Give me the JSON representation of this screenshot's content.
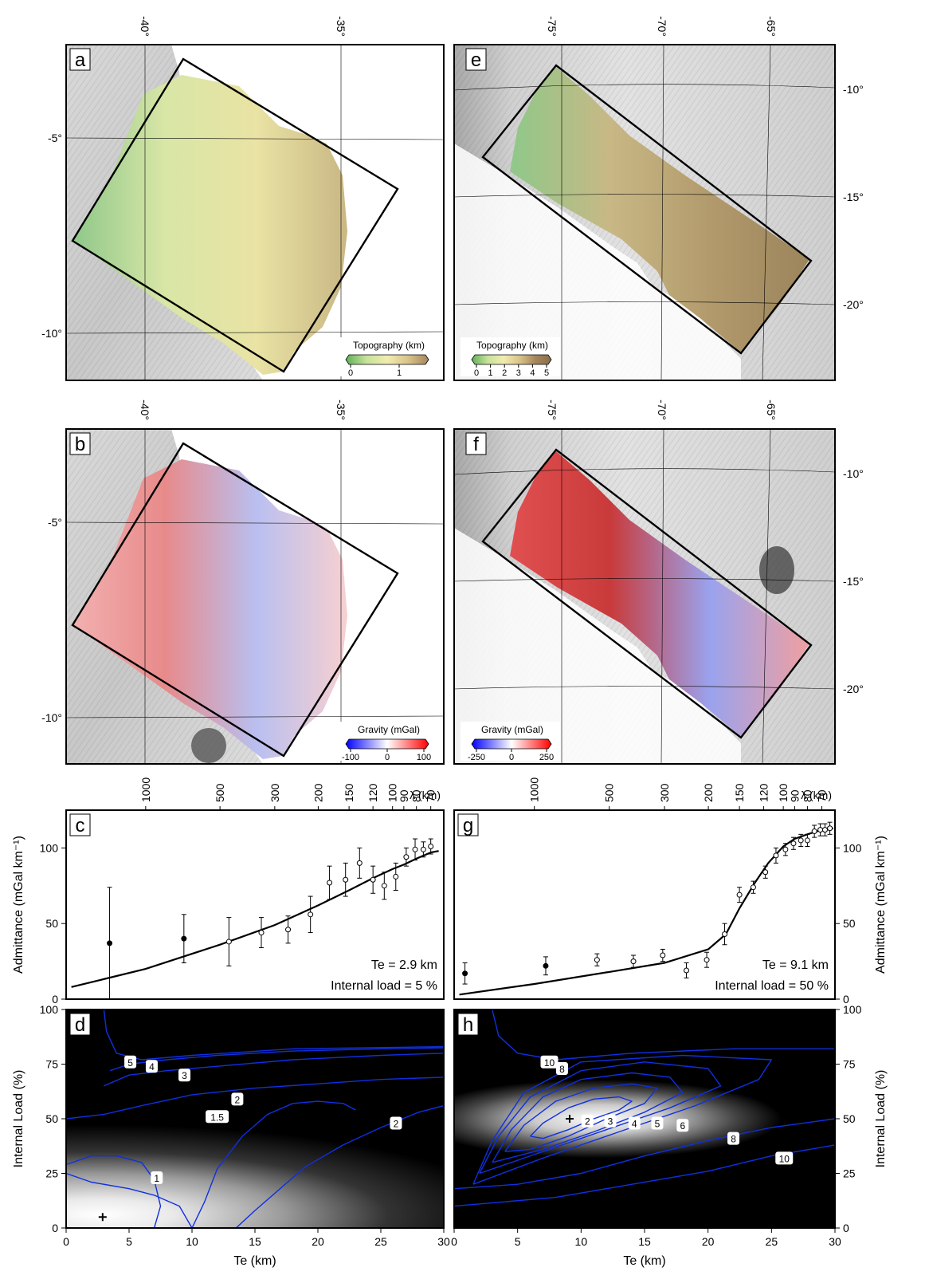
{
  "map_panels": [
    {
      "id": "a",
      "label": "a",
      "lon_ticks": [
        "-40°",
        "-35°"
      ],
      "lat_ticks": [
        "-5°",
        "-10°"
      ],
      "colorbar": {
        "title": "Topography (km)",
        "ticks": [
          "0",
          "1"
        ],
        "stops": [
          "#5fb05a",
          "#c7e29a",
          "#f2ecb0",
          "#d9c48a",
          "#a6865c"
        ]
      },
      "fill_colors": [
        "#8fc88a",
        "#d8e6a6",
        "#e9e3a4",
        "#c9b784"
      ]
    },
    {
      "id": "e",
      "label": "e",
      "lon_ticks": [
        "-75°",
        "-70°",
        "-65°"
      ],
      "lat_ticks": [
        "-10°",
        "-15°",
        "-20°"
      ],
      "colorbar": {
        "title": "Topography (km)",
        "ticks": [
          "0",
          "1",
          "2",
          "3",
          "4",
          "5"
        ],
        "stops": [
          "#5fb05a",
          "#c7e29a",
          "#f2ecb0",
          "#d9c48a",
          "#a6865c",
          "#8a6d4a"
        ]
      },
      "fill_colors": [
        "#8fc88a",
        "#c8b885",
        "#b29a6c",
        "#9c845c"
      ]
    },
    {
      "id": "b",
      "label": "b",
      "lon_ticks": [
        "-40°",
        "-35°"
      ],
      "lat_ticks": [
        "-5°",
        "-10°"
      ],
      "colorbar": {
        "title": "Gravity (mGal)",
        "ticks": [
          "-100",
          "0",
          "100"
        ],
        "stops": [
          "#0000ff",
          "#ffffff",
          "#ff0000"
        ]
      },
      "fill_colors": [
        "#f2b0b0",
        "#e88a8a",
        "#b9bff0",
        "#f7d0d0"
      ]
    },
    {
      "id": "f",
      "label": "f",
      "lon_ticks": [
        "-75°",
        "-70°",
        "-65°"
      ],
      "lat_ticks": [
        "-10°",
        "-15°",
        "-20°"
      ],
      "colorbar": {
        "title": "Gravity (mGal)",
        "ticks": [
          "-250",
          "0",
          "250"
        ],
        "stops": [
          "#0000ff",
          "#ffffff",
          "#ff0000"
        ]
      },
      "fill_colors": [
        "#e05050",
        "#c93a3a",
        "#9aa2ee",
        "#f0a0a0"
      ]
    }
  ],
  "chart_data": [
    {
      "id": "c",
      "type": "scatter",
      "label": "c",
      "top_axis_label": "λ (km)",
      "wavelength_ticks": [
        1000,
        500,
        300,
        200,
        150,
        120,
        100,
        90,
        80,
        70
      ],
      "ylabel": "Admittance (mGal km⁻¹)",
      "ylim": [
        0,
        125
      ],
      "y_ticks": [
        0,
        50,
        100
      ],
      "annotations": [
        "Te = 2.9 km",
        "Internal load = 5 %"
      ],
      "points": [
        {
          "wavelength": 1400,
          "admittance": 37,
          "error": 37,
          "filled": true
        },
        {
          "wavelength": 700,
          "admittance": 40,
          "error": 16,
          "filled": true
        },
        {
          "wavelength": 460,
          "admittance": 38,
          "error": 16,
          "filled": false
        },
        {
          "wavelength": 340,
          "admittance": 44,
          "error": 10,
          "filled": false
        },
        {
          "wavelength": 265,
          "admittance": 46,
          "error": 9,
          "filled": false
        },
        {
          "wavelength": 215,
          "admittance": 56,
          "error": 12,
          "filled": false
        },
        {
          "wavelength": 180,
          "admittance": 77,
          "error": 11,
          "filled": false
        },
        {
          "wavelength": 155,
          "admittance": 79,
          "error": 11,
          "filled": false
        },
        {
          "wavelength": 136,
          "admittance": 90,
          "error": 10,
          "filled": false
        },
        {
          "wavelength": 120,
          "admittance": 79,
          "error": 9,
          "filled": false
        },
        {
          "wavelength": 108,
          "admittance": 75,
          "error": 9,
          "filled": false
        },
        {
          "wavelength": 97,
          "admittance": 81,
          "error": 9,
          "filled": false
        },
        {
          "wavelength": 88,
          "admittance": 94,
          "error": 6,
          "filled": false
        },
        {
          "wavelength": 81,
          "admittance": 99,
          "error": 7,
          "filled": false
        },
        {
          "wavelength": 75,
          "admittance": 99,
          "error": 5,
          "filled": false
        },
        {
          "wavelength": 70,
          "admittance": 101,
          "error": 5,
          "filled": false
        }
      ],
      "curve": [
        [
          2000,
          8
        ],
        [
          1000,
          20
        ],
        [
          500,
          36
        ],
        [
          300,
          49
        ],
        [
          200,
          62
        ],
        [
          150,
          72
        ],
        [
          120,
          80
        ],
        [
          100,
          86
        ],
        [
          90,
          89
        ],
        [
          80,
          93
        ],
        [
          70,
          97
        ],
        [
          65,
          98
        ]
      ]
    },
    {
      "id": "g",
      "type": "scatter",
      "label": "g",
      "top_axis_label": "λ (km)",
      "wavelength_ticks": [
        1000,
        500,
        300,
        200,
        150,
        120,
        100,
        90,
        80,
        70
      ],
      "ylabel": "Admittance (mGal km⁻¹)",
      "ylim": [
        0,
        125
      ],
      "y_ticks": [
        0,
        50,
        100
      ],
      "annotations": [
        "Te = 9.1 km",
        "Internal load = 50 %"
      ],
      "points": [
        {
          "wavelength": 1900,
          "admittance": 17,
          "error": 7,
          "filled": true
        },
        {
          "wavelength": 900,
          "admittance": 22,
          "error": 6,
          "filled": true
        },
        {
          "wavelength": 560,
          "admittance": 26,
          "error": 4,
          "filled": false
        },
        {
          "wavelength": 400,
          "admittance": 25,
          "error": 4,
          "filled": false
        },
        {
          "wavelength": 305,
          "admittance": 29,
          "error": 4,
          "filled": false
        },
        {
          "wavelength": 245,
          "admittance": 19,
          "error": 5,
          "filled": false
        },
        {
          "wavelength": 203,
          "admittance": 26,
          "error": 5,
          "filled": false
        },
        {
          "wavelength": 172,
          "admittance": 43,
          "error": 7,
          "filled": false
        },
        {
          "wavelength": 150,
          "admittance": 69,
          "error": 5,
          "filled": false
        },
        {
          "wavelength": 132,
          "admittance": 74,
          "error": 4,
          "filled": false
        },
        {
          "wavelength": 118,
          "admittance": 84,
          "error": 4,
          "filled": false
        },
        {
          "wavelength": 107,
          "admittance": 95,
          "error": 5,
          "filled": false
        },
        {
          "wavelength": 98,
          "admittance": 99,
          "error": 4,
          "filled": false
        },
        {
          "wavelength": 91,
          "admittance": 103,
          "error": 4,
          "filled": false
        },
        {
          "wavelength": 85,
          "admittance": 105,
          "error": 4,
          "filled": false
        },
        {
          "wavelength": 80,
          "admittance": 105,
          "error": 4,
          "filled": false
        },
        {
          "wavelength": 75,
          "admittance": 111,
          "error": 4,
          "filled": false
        },
        {
          "wavelength": 71,
          "admittance": 112,
          "error": 4,
          "filled": false
        },
        {
          "wavelength": 68,
          "admittance": 112,
          "error": 4,
          "filled": false
        },
        {
          "wavelength": 65,
          "admittance": 113,
          "error": 4,
          "filled": false
        }
      ],
      "curve": [
        [
          2000,
          3
        ],
        [
          1000,
          10
        ],
        [
          500,
          18
        ],
        [
          300,
          24
        ],
        [
          200,
          33
        ],
        [
          170,
          43
        ],
        [
          150,
          60
        ],
        [
          130,
          77
        ],
        [
          115,
          90
        ],
        [
          100,
          101
        ],
        [
          90,
          106
        ],
        [
          80,
          109
        ],
        [
          70,
          112
        ],
        [
          63,
          113
        ]
      ]
    },
    {
      "id": "d",
      "type": "heatmap",
      "label": "d",
      "xlabel": "Te (km)",
      "ylabel": "Internal Load (%)",
      "xlim": [
        0,
        30
      ],
      "ylim": [
        0,
        100
      ],
      "x_ticks": [
        0,
        5,
        10,
        15,
        20,
        25,
        30
      ],
      "y_ticks": [
        0,
        25,
        50,
        75,
        100
      ],
      "best_fit": {
        "te": 2.9,
        "load": 5
      },
      "contour_labels": [
        {
          "text": "5",
          "te": 5.1,
          "load": 76
        },
        {
          "text": "4",
          "te": 6.8,
          "load": 74
        },
        {
          "text": "3",
          "te": 9.4,
          "load": 70
        },
        {
          "text": "2",
          "te": 13.6,
          "load": 59
        },
        {
          "text": "1.5",
          "te": 12.0,
          "load": 51
        },
        {
          "text": "1",
          "te": 7.2,
          "load": 23
        },
        {
          "text": "2",
          "te": 26.2,
          "load": 48
        }
      ],
      "contours": [
        [
          [
            0,
            25
          ],
          [
            2,
            21
          ],
          [
            5,
            18
          ],
          [
            7,
            15
          ],
          [
            9,
            10
          ],
          [
            10,
            0
          ]
        ],
        [
          [
            7,
            0
          ],
          [
            7.5,
            10
          ],
          [
            7,
            22
          ],
          [
            6,
            30
          ],
          [
            4,
            33
          ],
          [
            2,
            33
          ],
          [
            1,
            31
          ],
          [
            0,
            29
          ]
        ],
        [
          [
            10,
            0
          ],
          [
            11,
            12
          ],
          [
            12,
            27
          ],
          [
            14,
            42
          ],
          [
            16,
            52
          ],
          [
            18,
            57
          ],
          [
            20,
            58
          ],
          [
            22,
            57
          ],
          [
            23,
            54
          ]
        ],
        [
          [
            13.5,
            0
          ],
          [
            15,
            8
          ],
          [
            17,
            18
          ],
          [
            19,
            28
          ],
          [
            22,
            38
          ],
          [
            25,
            46
          ],
          [
            28,
            53
          ],
          [
            30,
            56
          ]
        ],
        [
          [
            0,
            50
          ],
          [
            3,
            52
          ],
          [
            6,
            56
          ],
          [
            10,
            61
          ],
          [
            15,
            64
          ],
          [
            20,
            66
          ],
          [
            25,
            68
          ],
          [
            30,
            69
          ]
        ],
        [
          [
            3,
            65
          ],
          [
            5,
            70
          ],
          [
            8,
            72
          ],
          [
            12,
            74
          ],
          [
            18,
            77
          ],
          [
            25,
            79
          ],
          [
            30,
            80
          ]
        ],
        [
          [
            3.5,
            72
          ],
          [
            5,
            75
          ],
          [
            8,
            77
          ],
          [
            12,
            79
          ],
          [
            18,
            81
          ],
          [
            25,
            82
          ],
          [
            30,
            82.5
          ]
        ],
        [
          [
            3,
            100
          ],
          [
            3.2,
            90
          ],
          [
            4,
            80
          ],
          [
            6,
            77
          ],
          [
            10,
            79
          ],
          [
            18,
            82
          ],
          [
            30,
            83
          ]
        ]
      ]
    },
    {
      "id": "h",
      "type": "heatmap",
      "label": "h",
      "xlabel": "Te (km)",
      "ylabel": "Internal Load (%)",
      "xlim": [
        0,
        30
      ],
      "ylim": [
        0,
        100
      ],
      "x_ticks": [
        0,
        5,
        10,
        15,
        20,
        25,
        30
      ],
      "y_ticks": [
        0,
        25,
        50,
        75,
        100
      ],
      "best_fit": {
        "te": 9.1,
        "load": 50
      },
      "contour_labels": [
        {
          "text": "10",
          "te": 7.5,
          "load": 76
        },
        {
          "text": "8",
          "te": 8.5,
          "load": 73
        },
        {
          "text": "2",
          "te": 10.5,
          "load": 49
        },
        {
          "text": "3",
          "te": 12.3,
          "load": 49
        },
        {
          "text": "4",
          "te": 14.2,
          "load": 48
        },
        {
          "text": "5",
          "te": 16.0,
          "load": 48
        },
        {
          "text": "6",
          "te": 18.0,
          "load": 47
        },
        {
          "text": "8",
          "te": 22.0,
          "load": 41
        },
        {
          "text": "10",
          "te": 26.0,
          "load": 32
        }
      ],
      "contours": [
        [
          [
            6,
            42
          ],
          [
            7,
            48
          ],
          [
            9,
            55
          ],
          [
            11,
            59
          ],
          [
            13,
            60
          ],
          [
            14,
            58
          ],
          [
            13,
            54
          ],
          [
            11,
            50
          ],
          [
            9,
            45
          ],
          [
            7,
            41
          ],
          [
            6,
            42
          ]
        ],
        [
          [
            4,
            35
          ],
          [
            5.5,
            47
          ],
          [
            8,
            58
          ],
          [
            11,
            64
          ],
          [
            14,
            66
          ],
          [
            16,
            64
          ],
          [
            15,
            57
          ],
          [
            12,
            50
          ],
          [
            9,
            42
          ],
          [
            6,
            36
          ],
          [
            4,
            35
          ]
        ],
        [
          [
            3,
            30
          ],
          [
            4.5,
            45
          ],
          [
            7,
            60
          ],
          [
            10,
            68
          ],
          [
            14,
            71
          ],
          [
            17,
            69
          ],
          [
            18,
            62
          ],
          [
            15,
            53
          ],
          [
            11,
            44
          ],
          [
            7,
            36
          ],
          [
            3,
            30
          ]
        ],
        [
          [
            2,
            25
          ],
          [
            3.5,
            42
          ],
          [
            6,
            60
          ],
          [
            10,
            72
          ],
          [
            15,
            76
          ],
          [
            20,
            73
          ],
          [
            21,
            65
          ],
          [
            17,
            55
          ],
          [
            12,
            45
          ],
          [
            7,
            35
          ],
          [
            2,
            25
          ]
        ],
        [
          [
            1.5,
            20
          ],
          [
            3,
            40
          ],
          [
            5.5,
            62
          ],
          [
            10,
            76
          ],
          [
            18,
            79
          ],
          [
            25,
            77
          ],
          [
            24,
            68
          ],
          [
            19,
            56
          ],
          [
            13,
            44
          ],
          [
            7,
            32
          ],
          [
            1.5,
            20
          ]
        ],
        [
          [
            0,
            18
          ],
          [
            5,
            20
          ],
          [
            10,
            25
          ],
          [
            15,
            33
          ],
          [
            20,
            40
          ],
          [
            25,
            46
          ],
          [
            30,
            50
          ]
        ],
        [
          [
            0,
            10
          ],
          [
            8,
            14
          ],
          [
            14,
            20
          ],
          [
            20,
            26
          ],
          [
            25,
            33
          ],
          [
            30,
            38
          ]
        ],
        [
          [
            3,
            100
          ],
          [
            3.5,
            88
          ],
          [
            5,
            80
          ],
          [
            8,
            77
          ],
          [
            14,
            80
          ],
          [
            22,
            82
          ],
          [
            30,
            82
          ]
        ]
      ]
    }
  ]
}
